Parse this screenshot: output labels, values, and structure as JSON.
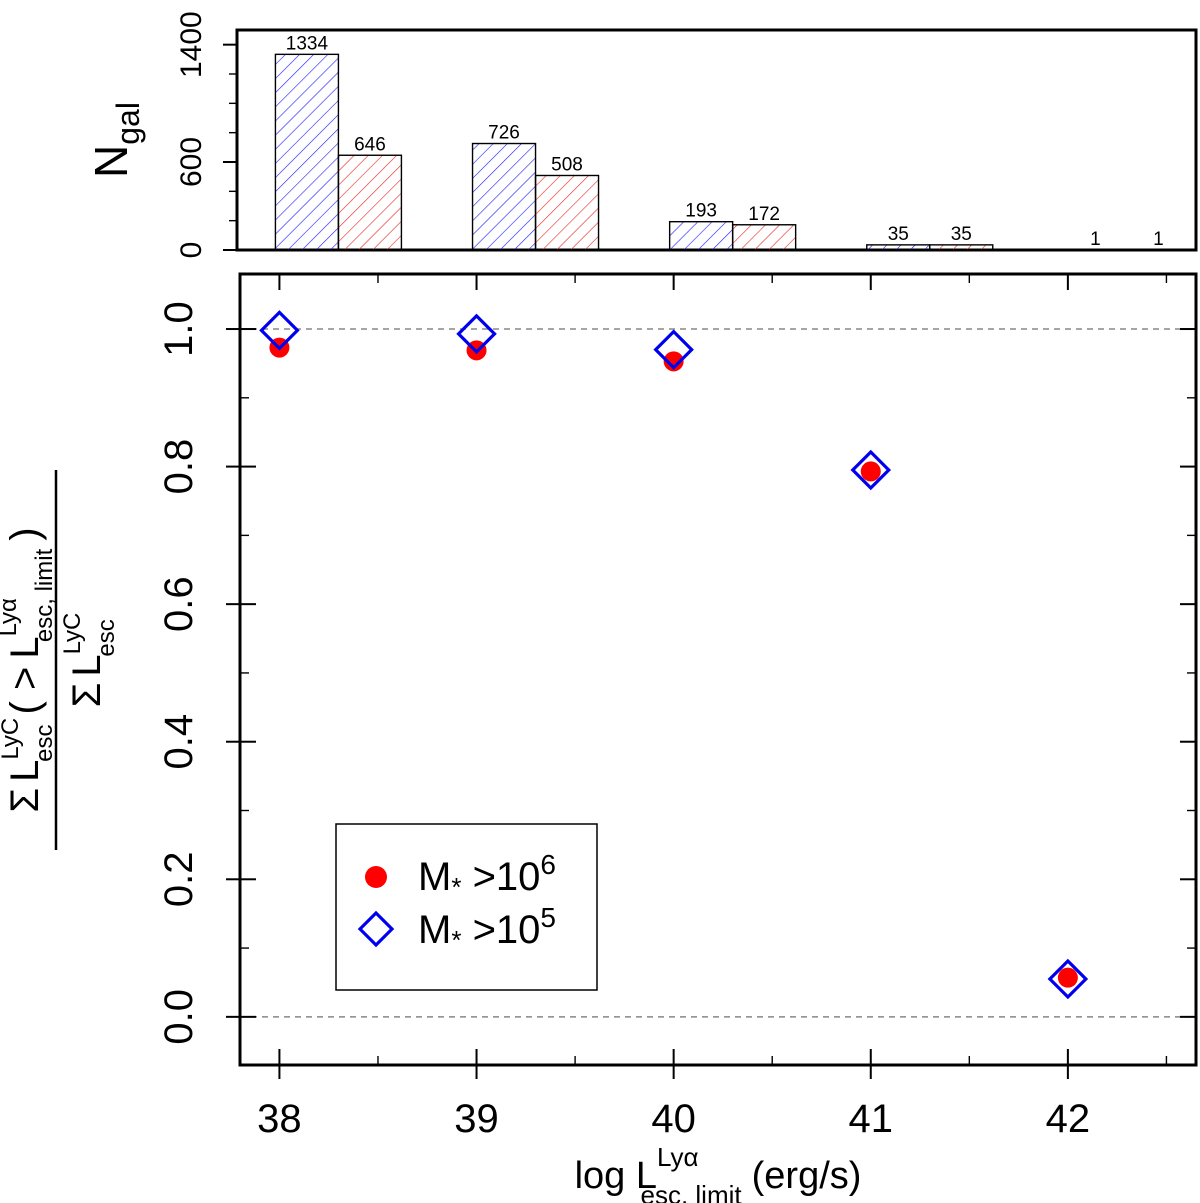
{
  "chart_data": [
    {
      "type": "bar",
      "panel": "top",
      "ylabel_main": "N",
      "ylabel_sub": "gal",
      "ylim": [
        0,
        1500
      ],
      "y_ticks": [
        0,
        600,
        1400
      ],
      "y_tick_labels": [
        "0",
        "600",
        "1400"
      ],
      "categories": [
        38,
        39,
        40,
        41,
        42
      ],
      "series": [
        {
          "name": "M* >10^5",
          "color": "#0000ff",
          "values": [
            1334,
            726,
            193,
            35,
            1
          ]
        },
        {
          "name": "M* >10^6",
          "color": "#e8261f",
          "values": [
            646,
            508,
            172,
            35,
            1
          ]
        }
      ],
      "data_labels": [
        [
          "1334",
          "726",
          "193",
          "35",
          "1"
        ],
        [
          "646",
          "508",
          "172",
          "35",
          "1"
        ]
      ]
    },
    {
      "type": "scatter",
      "panel": "bottom",
      "xlim": [
        37.8,
        42.65
      ],
      "ylim": [
        -0.07,
        1.08
      ],
      "x_ticks": [
        38,
        39,
        40,
        41,
        42
      ],
      "x_tick_labels": [
        "38",
        "39",
        "40",
        "41",
        "42"
      ],
      "y_ticks": [
        0.0,
        0.2,
        0.4,
        0.6,
        0.8,
        1.0
      ],
      "y_tick_labels": [
        "0.0",
        "0.2",
        "0.4",
        "0.6",
        "0.8",
        "1.0"
      ],
      "reference_lines": [
        0.0,
        1.0
      ],
      "series": [
        {
          "name": "M* >10^6",
          "marker": "filled-circle",
          "color": "#ff0000",
          "x": [
            38,
            39,
            40,
            41,
            42
          ],
          "y": [
            0.973,
            0.969,
            0.953,
            0.793,
            0.057
          ]
        },
        {
          "name": "M* >10^5",
          "marker": "open-diamond",
          "color": "#0000ee",
          "x": [
            38,
            39,
            40,
            41,
            42
          ],
          "y": [
            0.998,
            0.993,
            0.97,
            0.795,
            0.055
          ]
        }
      ]
    }
  ],
  "xlabel": {
    "prefix": "log L",
    "sup": "Lyα",
    "sub": "esc, limit",
    "suffix": "(erg/s)"
  },
  "ylabel": {
    "numerator": {
      "sum": "Σ",
      "L": "L",
      "sup": "LyC",
      "sub": "esc",
      "cond_open": "( >",
      "L2": "L",
      "sup2": "Lyα",
      "sub2": "esc, limit",
      "cond_close": ")"
    },
    "denominator": {
      "sum": "Σ",
      "L": "L",
      "sup": "LyC",
      "sub": "esc"
    }
  },
  "legend": {
    "position": "bottom-left",
    "entries": [
      {
        "marker": "filled-circle",
        "label_main": "M",
        "label_star": "*",
        "label_rest": " >10",
        "label_exp": "6"
      },
      {
        "marker": "open-diamond",
        "label_main": "M",
        "label_star": "*",
        "label_rest": " >10",
        "label_exp": "5"
      }
    ]
  }
}
